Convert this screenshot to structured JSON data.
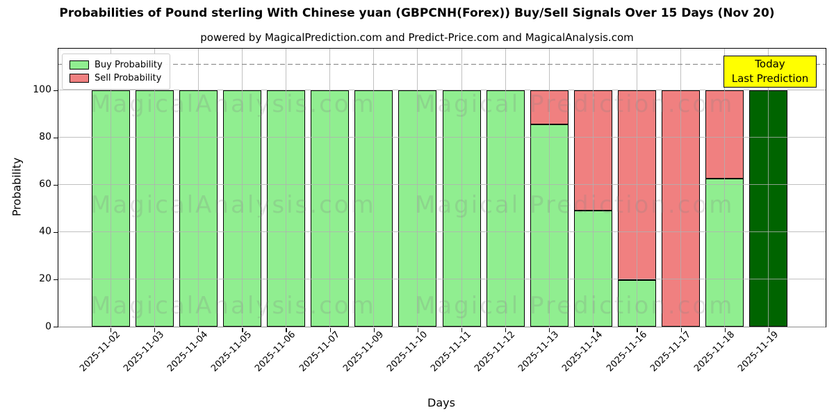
{
  "title": "Probabilities of Pound sterling With Chinese yuan (GBPCNH(Forex)) Buy/Sell Signals Over 15 Days (Nov 20)",
  "subtitle": "powered by MagicalPrediction.com and Predict-Price.com and MagicalAnalysis.com",
  "annotation": {
    "line1": "Today",
    "line2": "Last Prediction",
    "bg_color": "#FFFF00"
  },
  "watermarks": {
    "left": "MagicalAnalysis.com",
    "right": "Magical Prediction.com"
  },
  "colors": {
    "buy": "#90EE90",
    "sell": "#F08080",
    "today_bar": "#006400",
    "bar_edge": "#000000",
    "grid": "#B0B0B0",
    "dashed_line": "#808080",
    "annotation_bg": "#FFFF00",
    "watermark": "#888888"
  },
  "chart_data": {
    "type": "bar",
    "stacked": true,
    "title": "Probabilities of Pound sterling With Chinese yuan (GBPCNH(Forex)) Buy/Sell Signals Over 15 Days (Nov 20)",
    "xlabel": "Days",
    "ylabel": "Probability",
    "categories": [
      "2025-11-02",
      "2025-11-03",
      "2025-11-04",
      "2025-11-05",
      "2025-11-06",
      "2025-11-07",
      "2025-11-09",
      "2025-11-10",
      "2025-11-11",
      "2025-11-12",
      "2025-11-13",
      "2025-11-14",
      "2025-11-16",
      "2025-11-17",
      "2025-11-18",
      "2025-11-19"
    ],
    "series": [
      {
        "name": "Buy Probability",
        "color": "#90EE90",
        "values": [
          100,
          100,
          100,
          100,
          100,
          100,
          100,
          100,
          100,
          100,
          85.5,
          49,
          19.6,
          0,
          62.5,
          100
        ]
      },
      {
        "name": "Sell Probability",
        "color": "#F08080",
        "values": [
          0,
          0,
          0,
          0,
          0,
          0,
          0,
          0,
          0,
          0,
          14.5,
          51,
          80.4,
          100,
          37.5,
          0
        ]
      }
    ],
    "today_bar": {
      "index": 15,
      "color": "#006400",
      "label": "Today Last Prediction"
    },
    "yticks": [
      0,
      20,
      40,
      60,
      80,
      100
    ],
    "ytick_labels": [
      "0",
      "20",
      "40",
      "60",
      "80",
      "100"
    ],
    "ylim": [
      0,
      117.6
    ],
    "dashed_line_y": 111,
    "grid": true,
    "legend_position": "upper left"
  }
}
